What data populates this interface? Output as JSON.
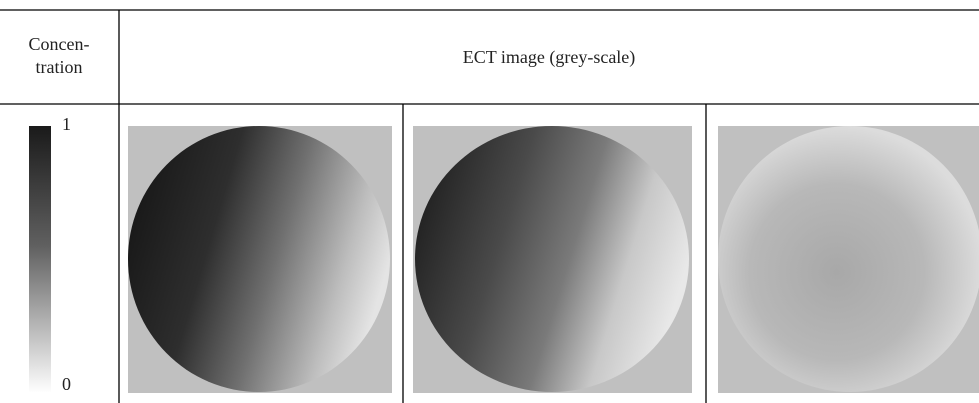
{
  "table": {
    "header": {
      "concentration": [
        "Concen-",
        "tration"
      ],
      "image": "ECT image (grey-scale)"
    },
    "scale": {
      "top": "1",
      "bottom": "0"
    }
  }
}
